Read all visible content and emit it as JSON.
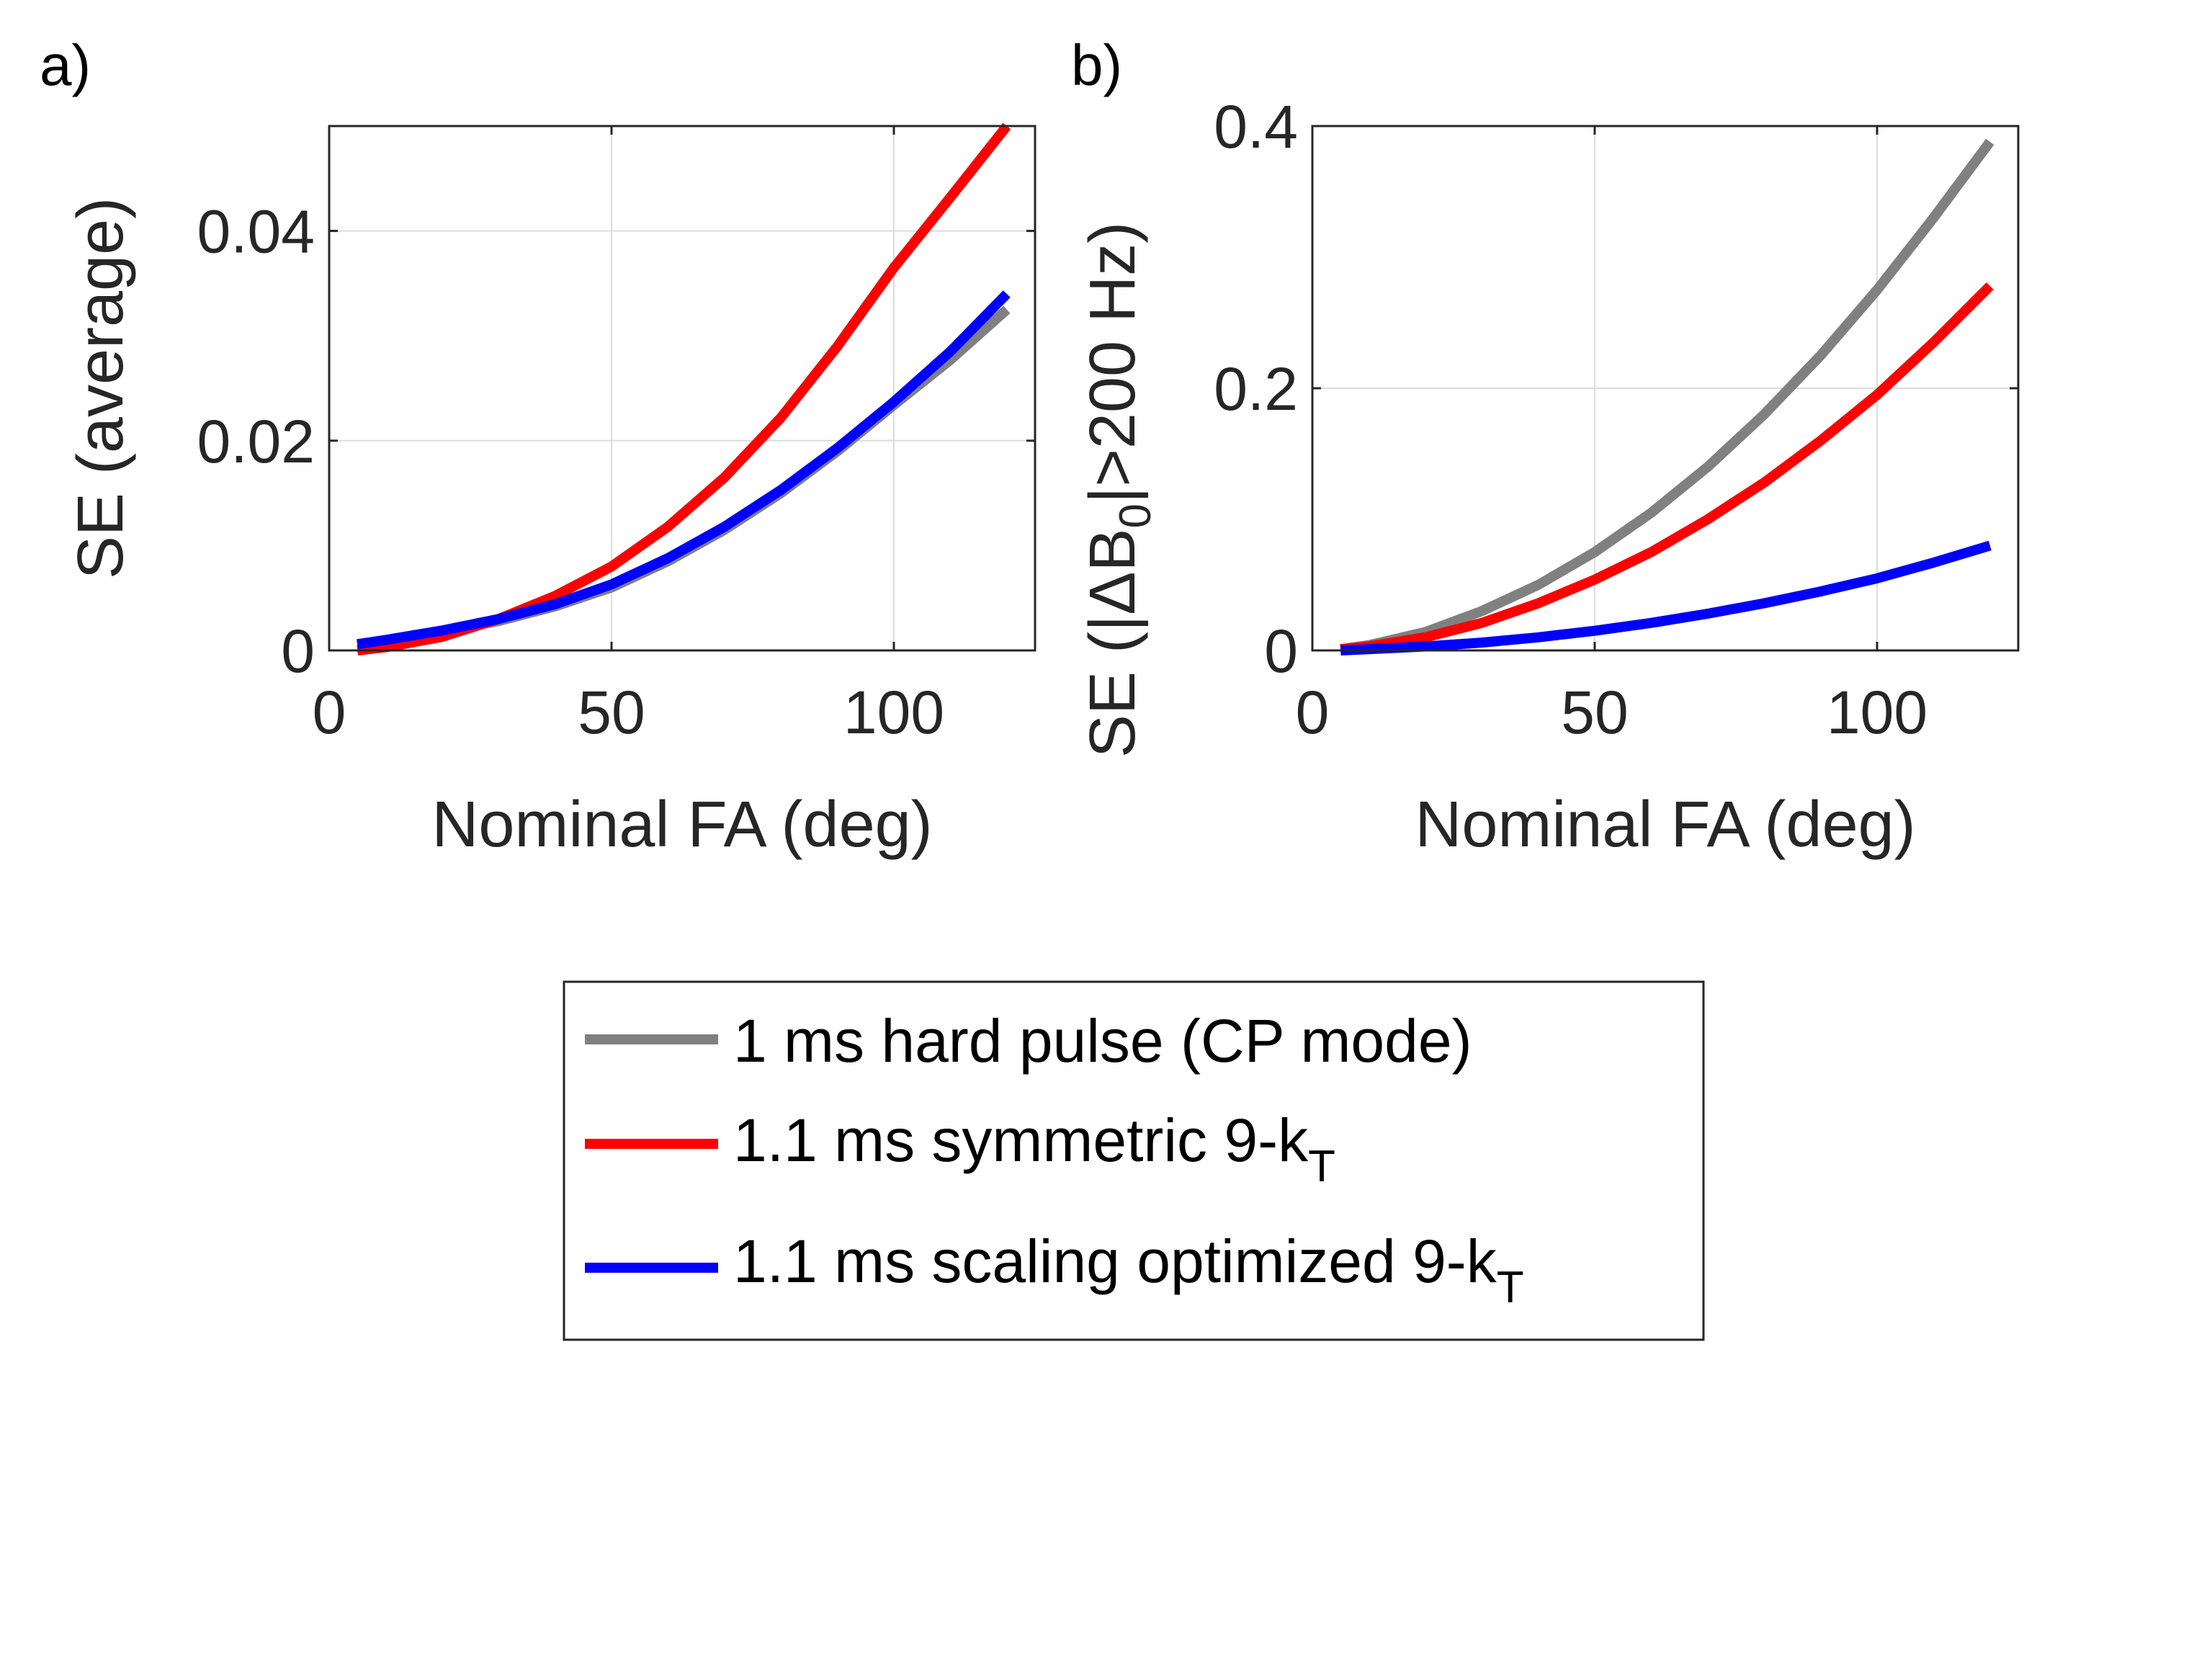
{
  "figure": {
    "background": "#ffffff"
  },
  "chart_data": [
    {
      "type": "line",
      "panel_label": "a)",
      "xlabel": "Nominal FA (deg)",
      "ylabel": "SE (average)",
      "xlim": [
        0,
        125
      ],
      "ylim": [
        0,
        0.05
      ],
      "xticks": [
        0,
        50,
        100
      ],
      "xtick_labels": [
        "0",
        "50",
        "100"
      ],
      "yticks": [
        0,
        0.02,
        0.04
      ],
      "ytick_labels": [
        "0",
        "0.02",
        "0.04"
      ],
      "grid": true,
      "x": [
        5,
        10,
        20,
        30,
        40,
        50,
        60,
        70,
        80,
        90,
        100,
        110,
        120
      ],
      "series": [
        {
          "name": "1 ms hard pulse (CP mode)",
          "color": "#808080",
          "values": [
            0.0005,
            0.0009,
            0.0018,
            0.0028,
            0.0042,
            0.006,
            0.0085,
            0.0115,
            0.015,
            0.019,
            0.0234,
            0.0277,
            0.0325
          ]
        },
        {
          "name": "1.1 ms symmetric 9-kT",
          "color": "#ff0000",
          "values": [
            0.0,
            0.0003,
            0.0013,
            0.003,
            0.0052,
            0.008,
            0.0118,
            0.0165,
            0.0222,
            0.029,
            0.0365,
            0.0432,
            0.05
          ]
        },
        {
          "name": "1.1 ms scaling optimized 9-kT",
          "color": "#0000ff",
          "values": [
            0.0006,
            0.001,
            0.0019,
            0.003,
            0.0044,
            0.0063,
            0.0088,
            0.0118,
            0.0153,
            0.0193,
            0.0237,
            0.0285,
            0.034
          ]
        }
      ]
    },
    {
      "type": "line",
      "panel_label": "b)",
      "xlabel": "Nominal FA (deg)",
      "ylabel_parts": [
        "SE (|ΔB",
        "0",
        "|>200 Hz)"
      ],
      "xlim": [
        0,
        125
      ],
      "ylim": [
        0,
        0.4
      ],
      "xticks": [
        0,
        50,
        100
      ],
      "xtick_labels": [
        "0",
        "50",
        "100"
      ],
      "yticks": [
        0,
        0.2,
        0.4
      ],
      "ytick_labels": [
        "0",
        "0.2",
        "0.4"
      ],
      "grid": true,
      "x": [
        5,
        10,
        20,
        30,
        40,
        50,
        60,
        70,
        80,
        90,
        100,
        110,
        120
      ],
      "series": [
        {
          "name": "1 ms hard pulse (CP mode)",
          "color": "#808080",
          "values": [
            0.001,
            0.004,
            0.014,
            0.03,
            0.05,
            0.075,
            0.105,
            0.14,
            0.18,
            0.225,
            0.275,
            0.33,
            0.388
          ]
        },
        {
          "name": "1.1 ms symmetric 9-kT",
          "color": "#ff0000",
          "values": [
            0.001,
            0.003,
            0.01,
            0.021,
            0.036,
            0.054,
            0.075,
            0.1,
            0.128,
            0.16,
            0.195,
            0.235,
            0.278
          ]
        },
        {
          "name": "1.1 ms scaling optimized 9-kT",
          "color": "#0000ff",
          "values": [
            0.0,
            0.001,
            0.003,
            0.006,
            0.01,
            0.015,
            0.021,
            0.028,
            0.036,
            0.045,
            0.055,
            0.067,
            0.08
          ]
        }
      ]
    }
  ],
  "legend": {
    "items": [
      {
        "main": "1 ms hard pulse (CP mode)",
        "sub": "",
        "color": "#808080"
      },
      {
        "main": "1.1 ms symmetric 9-k",
        "sub": "T",
        "color": "#ff0000"
      },
      {
        "main": "1.1 ms scaling optimized 9-k",
        "sub": "T",
        "color": "#0000ff"
      }
    ]
  }
}
